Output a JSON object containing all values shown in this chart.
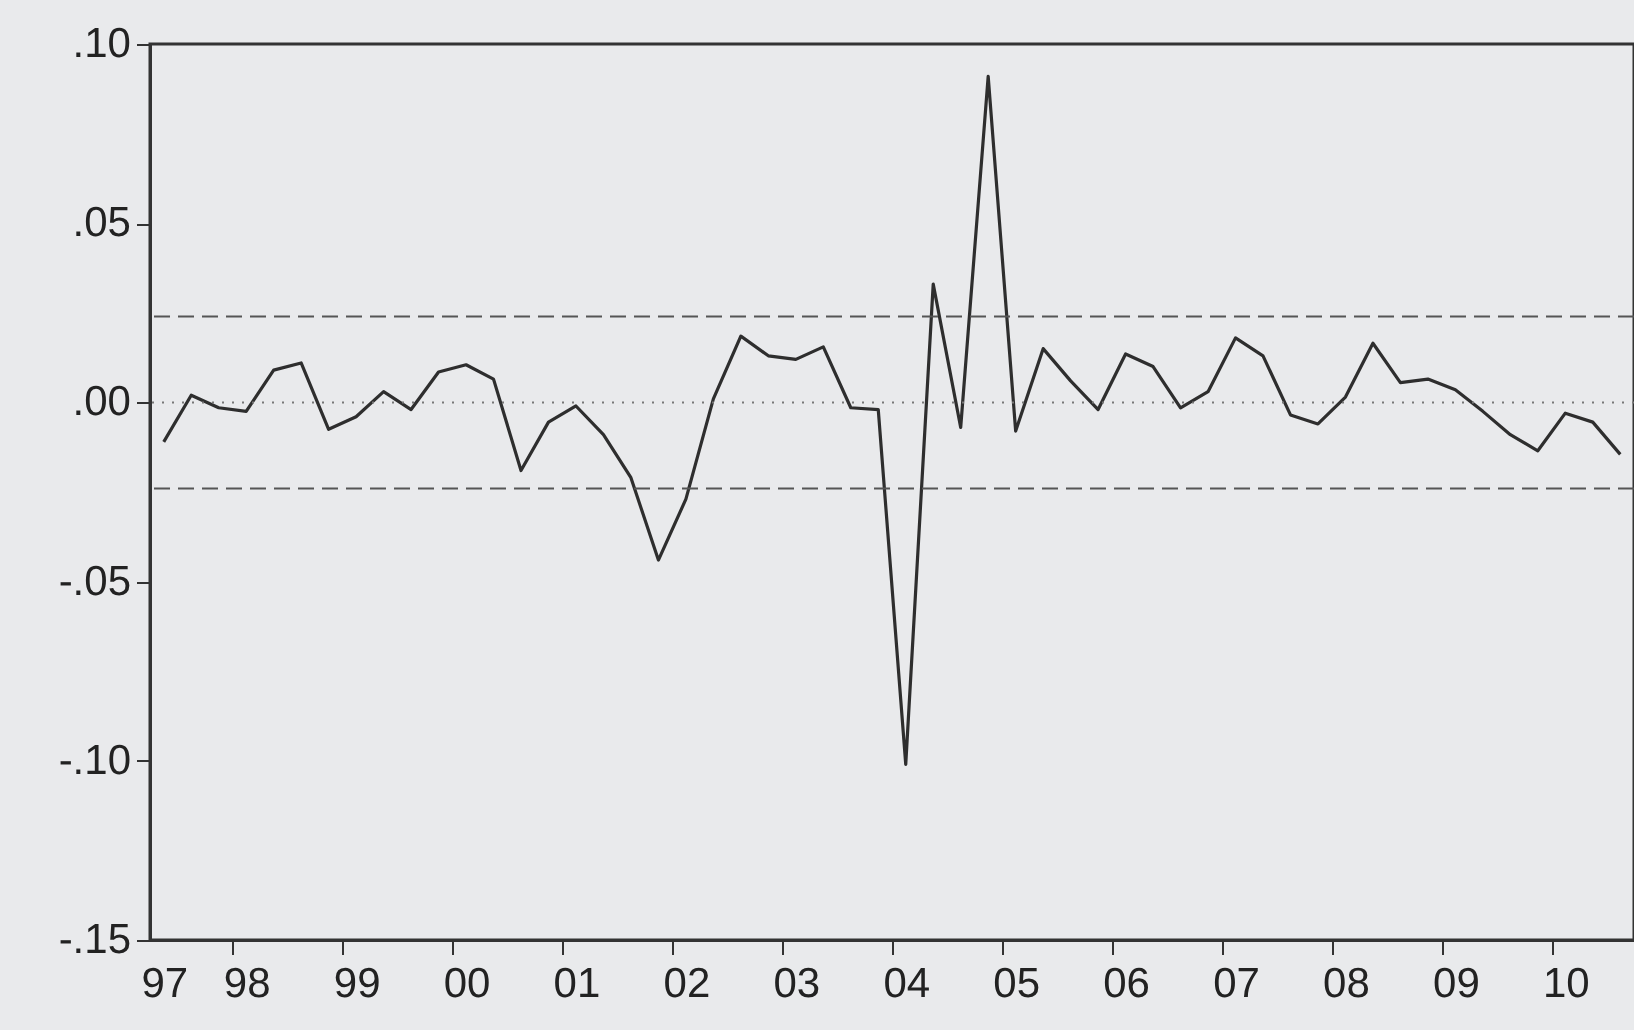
{
  "chart_data": {
    "type": "line",
    "color": "#2e2e2e",
    "line_style": "solid",
    "marker": "none",
    "grid": false,
    "categories": [
      "97",
      null,
      null,
      "98",
      null,
      null,
      null,
      "99",
      null,
      null,
      null,
      "00",
      null,
      null,
      null,
      "01",
      null,
      null,
      null,
      "02",
      null,
      null,
      null,
      "03",
      null,
      null,
      null,
      "04",
      null,
      null,
      null,
      "05",
      null,
      null,
      null,
      "06",
      null,
      null,
      null,
      "07",
      null,
      null,
      null,
      "08",
      null,
      null,
      null,
      "09",
      null,
      null,
      null,
      "10",
      null,
      null
    ],
    "values": [
      -0.011,
      0.002,
      -0.0015,
      -0.0025,
      0.009,
      0.011,
      -0.0075,
      -0.004,
      0.003,
      -0.002,
      0.0085,
      0.0105,
      0.0065,
      -0.019,
      -0.0055,
      -0.001,
      -0.009,
      -0.021,
      -0.044,
      -0.027,
      0.001,
      0.0185,
      0.013,
      0.012,
      0.0155,
      -0.0015,
      -0.002,
      -0.101,
      0.033,
      -0.007,
      0.091,
      -0.008,
      0.015,
      0.006,
      -0.002,
      0.0135,
      0.01,
      -0.0015,
      0.003,
      0.018,
      0.013,
      -0.0035,
      -0.006,
      0.0015,
      0.0165,
      0.0055,
      0.0065,
      0.0035,
      -0.0025,
      -0.009,
      -0.0135,
      -0.003,
      -0.0055,
      -0.0145
    ],
    "ylim": [
      -0.15,
      0.1
    ],
    "yticks": [
      {
        "value": -0.15,
        "label": "-.15"
      },
      {
        "value": -0.1,
        "label": "-.10"
      },
      {
        "value": -0.05,
        "label": "-.05"
      },
      {
        "value": 0,
        "label": ".00"
      },
      {
        "value": 0.05,
        "label": ".05"
      },
      {
        "value": 0.1,
        "label": ".10"
      }
    ],
    "ref_lines": [
      {
        "axis": "y",
        "value": 0.024,
        "line_style": "dashed",
        "color": "#555555"
      },
      {
        "axis": "y",
        "value": 0,
        "line_style": "dotted",
        "color": "#777777"
      },
      {
        "axis": "y",
        "value": -0.024,
        "line_style": "dashed",
        "color": "#555555"
      }
    ]
  }
}
